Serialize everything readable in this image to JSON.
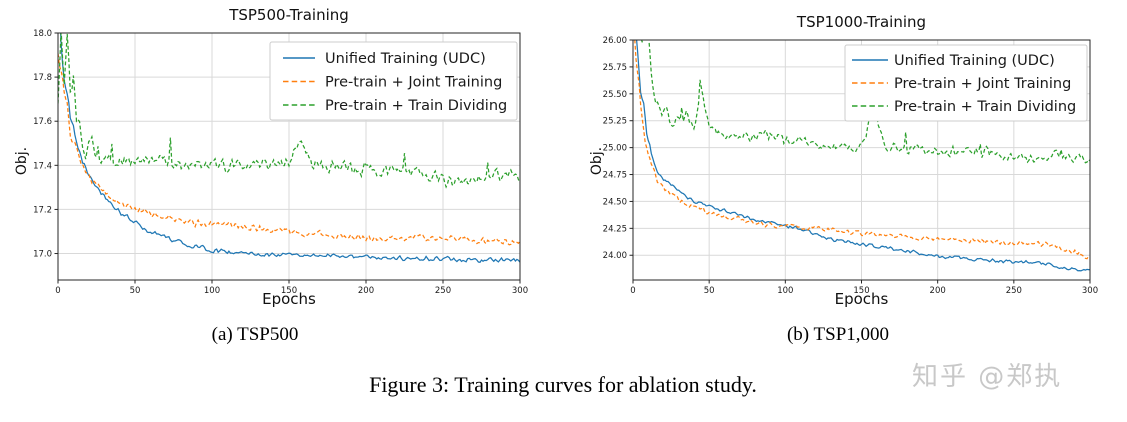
{
  "figure": {
    "caption": "Figure 3: Training curves for ablation study.",
    "subcaption_a": "(a) TSP500",
    "subcaption_b": "(b) TSP1,000"
  },
  "watermark": {
    "text": "知乎 @郑执",
    "color": "#c8c8c8"
  },
  "style": {
    "grid_color": "#d9d9d9",
    "frame_color": "#262626",
    "tick_text_color": "#1a1a1a",
    "legend_border_color": "#cccccc",
    "legend_position": "upper right"
  },
  "chart_data": [
    {
      "type": "line",
      "title": "TSP500-Training",
      "xlabel": "Epochs",
      "ylabel": "Obj.",
      "xlim": [
        0,
        300
      ],
      "ylim": [
        16.88,
        18.0
      ],
      "xticks": [
        0,
        50,
        100,
        150,
        200,
        250,
        300
      ],
      "xtick_labels": [
        "0",
        "50",
        "100",
        "150",
        "200",
        "250",
        "300"
      ],
      "yticks": [
        17.0,
        17.2,
        17.4,
        17.6,
        17.8,
        18.0
      ],
      "ytick_labels": [
        "17.0",
        "17.2",
        "17.4",
        "17.6",
        "17.8",
        "18.0"
      ],
      "grid": true,
      "series": [
        {
          "name": "Unified Training (UDC)",
          "color": "#1f77b4",
          "style": "solid",
          "noise": 0.013,
          "spiky": false,
          "x": [
            0,
            2,
            4,
            6,
            8,
            10,
            13,
            16,
            20,
            25,
            30,
            35,
            40,
            50,
            60,
            75,
            90,
            105,
            120,
            150,
            180,
            210,
            240,
            270,
            300
          ],
          "y": [
            18.4,
            17.95,
            17.8,
            17.72,
            17.62,
            17.57,
            17.48,
            17.42,
            17.36,
            17.3,
            17.26,
            17.22,
            17.19,
            17.14,
            17.1,
            17.06,
            17.03,
            17.01,
            17.0,
            16.99,
            16.99,
            16.98,
            16.98,
            16.97,
            16.97
          ]
        },
        {
          "name": "Pre-train + Joint Training",
          "color": "#ff7f0e",
          "style": "dashed",
          "noise": 0.02,
          "spiky": false,
          "x": [
            0,
            2,
            4,
            6,
            8,
            10,
            13,
            16,
            20,
            25,
            30,
            35,
            40,
            50,
            60,
            75,
            90,
            105,
            120,
            150,
            180,
            210,
            240,
            270,
            300
          ],
          "y": [
            17.95,
            17.85,
            17.7,
            17.65,
            17.55,
            17.5,
            17.45,
            17.4,
            17.36,
            17.31,
            17.28,
            17.25,
            17.23,
            17.2,
            17.18,
            17.16,
            17.14,
            17.13,
            17.12,
            17.1,
            17.08,
            17.07,
            17.07,
            17.06,
            17.05
          ]
        },
        {
          "name": "Pre-train + Train Dividing",
          "color": "#2ca02c",
          "style": "dashed",
          "noise": 0.035,
          "spiky": true,
          "x": [
            0,
            2,
            4,
            6,
            8,
            10,
            12,
            15,
            18,
            22,
            26,
            30,
            40,
            50,
            75,
            100,
            125,
            150,
            158,
            165,
            200,
            230,
            260,
            280,
            300
          ],
          "y": [
            17.75,
            18.1,
            17.8,
            17.95,
            17.7,
            17.8,
            17.6,
            17.55,
            17.45,
            17.5,
            17.42,
            17.44,
            17.43,
            17.43,
            17.41,
            17.4,
            17.4,
            17.41,
            17.53,
            17.4,
            17.38,
            17.37,
            17.32,
            17.36,
            17.35
          ]
        }
      ]
    },
    {
      "type": "line",
      "title": "TSP1000-Training",
      "xlabel": "Epochs",
      "ylabel": "Obj.",
      "xlim": [
        0,
        300
      ],
      "ylim": [
        23.77,
        26.0
      ],
      "xticks": [
        0,
        50,
        100,
        150,
        200,
        250,
        300
      ],
      "xtick_labels": [
        "0",
        "50",
        "100",
        "150",
        "200",
        "250",
        "300"
      ],
      "yticks": [
        24.0,
        24.25,
        24.5,
        24.75,
        25.0,
        25.25,
        25.5,
        25.75,
        26.0
      ],
      "ytick_labels": [
        "24.00",
        "24.25",
        "24.50",
        "24.75",
        "25.00",
        "25.25",
        "25.50",
        "25.75",
        "26.00"
      ],
      "grid": true,
      "series": [
        {
          "name": "Unified Training (UDC)",
          "color": "#1f77b4",
          "style": "solid",
          "noise": 0.02,
          "spiky": false,
          "x": [
            0,
            2,
            5,
            7,
            9,
            12,
            16,
            20,
            25,
            30,
            40,
            50,
            65,
            80,
            100,
            115,
            130,
            150,
            175,
            200,
            225,
            250,
            270,
            285,
            300
          ],
          "y": [
            26.6,
            26.1,
            25.5,
            25.4,
            25.15,
            24.95,
            24.78,
            24.7,
            24.66,
            24.6,
            24.5,
            24.45,
            24.4,
            24.32,
            24.28,
            24.22,
            24.15,
            24.1,
            24.05,
            23.99,
            23.96,
            23.94,
            23.92,
            23.88,
            23.86
          ]
        },
        {
          "name": "Pre-train + Joint Training",
          "color": "#ff7f0e",
          "style": "dashed",
          "noise": 0.028,
          "spiky": false,
          "x": [
            0,
            2,
            5,
            8,
            12,
            16,
            20,
            25,
            30,
            40,
            50,
            65,
            80,
            100,
            110,
            125,
            150,
            180,
            210,
            240,
            270,
            285,
            300
          ],
          "y": [
            26.3,
            25.9,
            25.4,
            25.05,
            24.85,
            24.7,
            24.62,
            24.57,
            24.52,
            24.45,
            24.4,
            24.35,
            24.3,
            24.27,
            24.26,
            24.24,
            24.2,
            24.17,
            24.15,
            24.12,
            24.1,
            24.05,
            23.98
          ]
        },
        {
          "name": "Pre-train + Train Dividing",
          "color": "#2ca02c",
          "style": "dashed",
          "noise": 0.058,
          "spiky": true,
          "x": [
            0,
            3,
            6,
            9,
            12,
            15,
            18,
            22,
            26,
            30,
            35,
            40,
            45,
            50,
            55,
            60,
            70,
            80,
            90,
            100,
            115,
            130,
            150,
            158,
            165,
            180,
            200,
            220,
            240,
            260,
            280,
            300
          ],
          "y": [
            26.7,
            26.3,
            26.0,
            26.2,
            25.7,
            25.45,
            25.3,
            25.35,
            25.2,
            25.28,
            25.3,
            25.2,
            25.5,
            25.2,
            25.15,
            25.1,
            25.12,
            25.1,
            25.12,
            25.05,
            25.05,
            25.0,
            25.0,
            25.38,
            25.02,
            24.98,
            24.97,
            24.96,
            24.95,
            24.9,
            24.93,
            24.88
          ]
        }
      ]
    }
  ]
}
